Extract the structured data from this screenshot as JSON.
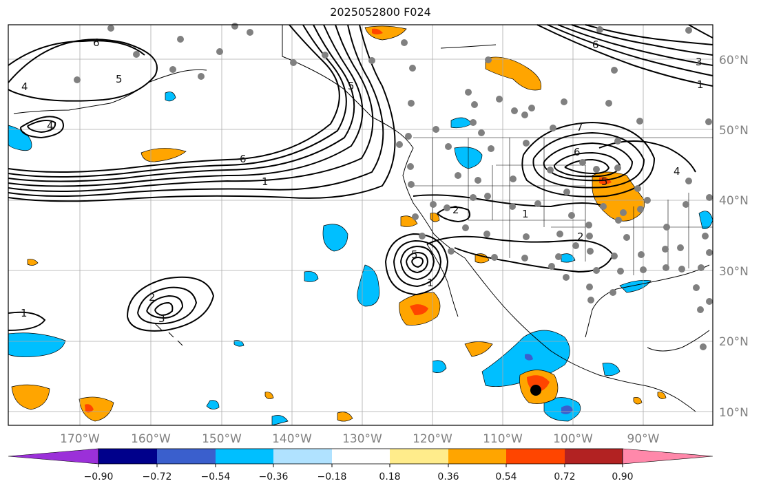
{
  "title": "2025052800 F024",
  "lat_labels": [
    "60°N",
    "50°N",
    "40°N",
    "30°N",
    "20°N",
    "10°N"
  ],
  "lon_labels": [
    "170°W",
    "160°W",
    "150°W",
    "140°W",
    "130°W",
    "120°W",
    "110°W",
    "100°W",
    "90°W"
  ],
  "colorbar": {
    "ticks": [
      "−0.90",
      "−0.72",
      "−0.54",
      "−0.36",
      "−0.18",
      "0.18",
      "0.36",
      "0.54",
      "0.72",
      "0.90"
    ],
    "colors": [
      "#9b30d9",
      "#00008b",
      "#3a5fcd",
      "#00bfff",
      "#b0e2ff",
      "#ffffff",
      "#ffec8b",
      "#ffa500",
      "#ff4500",
      "#b22222",
      "#ff88aa"
    ]
  },
  "contour_labels": {
    "c1": "6",
    "c2": "5",
    "c3": "4",
    "c4": "4",
    "c5": "6",
    "c6": "1",
    "c7": "1",
    "c8": "2",
    "c9": "3",
    "c10": "5",
    "c11": "1",
    "c12": "2",
    "c13": "1",
    "c14": "2",
    "c15": "6",
    "c16": "5",
    "c17": "7",
    "c18": "4",
    "c19": "6",
    "c20": "3",
    "c21": "1",
    "c22": "5"
  }
}
